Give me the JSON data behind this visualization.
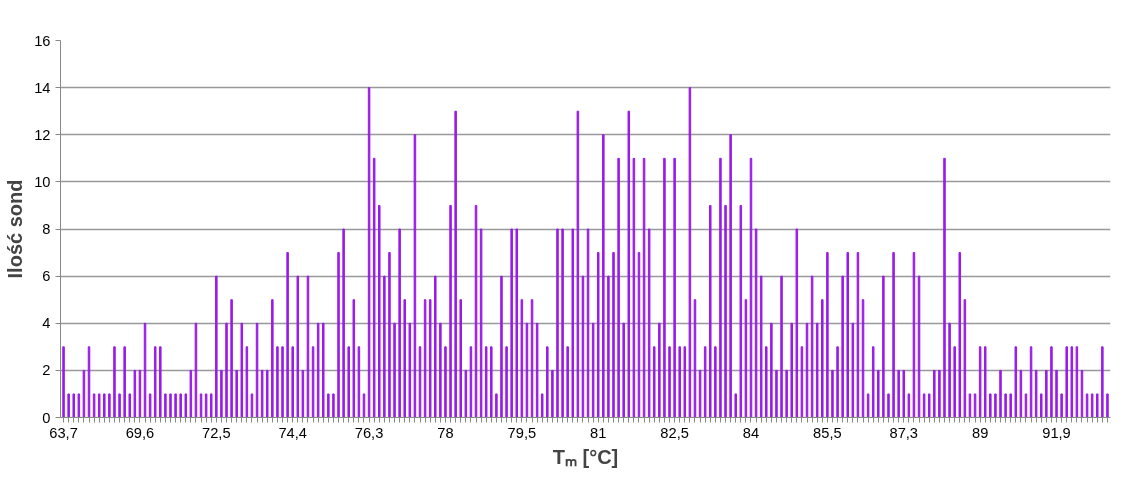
{
  "chart_data": {
    "type": "bar",
    "xlabel": "Tₘ [°C]",
    "ylabel": "Ilość sond",
    "categories": [
      "63,7",
      null,
      null,
      null,
      null,
      null,
      null,
      null,
      null,
      null,
      null,
      null,
      null,
      null,
      null,
      "69,6",
      null,
      null,
      null,
      null,
      null,
      null,
      null,
      null,
      null,
      null,
      null,
      null,
      null,
      null,
      "72,5",
      null,
      null,
      null,
      null,
      null,
      null,
      null,
      null,
      null,
      null,
      null,
      null,
      null,
      null,
      "74,4",
      null,
      null,
      null,
      null,
      null,
      null,
      null,
      null,
      null,
      null,
      null,
      null,
      null,
      null,
      "76,3",
      null,
      null,
      null,
      null,
      null,
      null,
      null,
      null,
      null,
      null,
      null,
      null,
      null,
      null,
      "78",
      null,
      null,
      null,
      null,
      null,
      null,
      null,
      null,
      null,
      null,
      null,
      null,
      null,
      null,
      "79,5",
      null,
      null,
      null,
      null,
      null,
      null,
      null,
      null,
      null,
      null,
      null,
      null,
      null,
      null,
      "81",
      null,
      null,
      null,
      null,
      null,
      null,
      null,
      null,
      null,
      null,
      null,
      null,
      null,
      null,
      "82,5",
      null,
      null,
      null,
      null,
      null,
      null,
      null,
      null,
      null,
      null,
      null,
      null,
      null,
      null,
      "84",
      null,
      null,
      null,
      null,
      null,
      null,
      null,
      null,
      null,
      null,
      null,
      null,
      null,
      null,
      "85,5",
      null,
      null,
      null,
      null,
      null,
      null,
      null,
      null,
      null,
      null,
      null,
      null,
      null,
      null,
      "87,3",
      null,
      null,
      null,
      null,
      null,
      null,
      null,
      null,
      null,
      null,
      null,
      null,
      null,
      null,
      "89",
      null,
      null,
      null,
      null,
      null,
      null,
      null,
      null,
      null,
      null,
      null,
      null,
      null,
      null,
      "91,9",
      null,
      null,
      null,
      null,
      null,
      null,
      null,
      null,
      null,
      null
    ],
    "values": [
      3,
      1,
      1,
      1,
      2,
      3,
      1,
      1,
      1,
      1,
      3,
      1,
      3,
      1,
      2,
      2,
      4,
      1,
      3,
      3,
      1,
      1,
      1,
      1,
      1,
      2,
      4,
      1,
      1,
      1,
      6,
      2,
      4,
      5,
      2,
      4,
      3,
      1,
      4,
      2,
      2,
      5,
      3,
      3,
      7,
      3,
      6,
      2,
      6,
      3,
      4,
      4,
      1,
      1,
      7,
      8,
      3,
      5,
      3,
      1,
      14,
      11,
      9,
      6,
      7,
      4,
      8,
      5,
      4,
      12,
      3,
      5,
      5,
      6,
      4,
      3,
      9,
      13,
      5,
      2,
      3,
      9,
      8,
      3,
      3,
      1,
      6,
      3,
      8,
      8,
      5,
      4,
      5,
      4,
      1,
      3,
      2,
      8,
      8,
      3,
      8,
      13,
      6,
      8,
      4,
      7,
      12,
      6,
      7,
      11,
      4,
      13,
      11,
      7,
      11,
      8,
      3,
      4,
      11,
      3,
      11,
      3,
      3,
      14,
      5,
      2,
      3,
      9,
      3,
      11,
      9,
      12,
      1,
      9,
      5,
      11,
      8,
      6,
      3,
      4,
      2,
      6,
      2,
      4,
      8,
      3,
      4,
      6,
      4,
      5,
      7,
      2,
      3,
      6,
      7,
      4,
      7,
      5,
      1,
      3,
      2,
      6,
      1,
      7,
      2,
      2,
      1,
      7,
      6,
      1,
      1,
      2,
      2,
      11,
      4,
      3,
      7,
      5,
      1,
      1,
      3,
      3,
      1,
      1,
      2,
      1,
      1,
      3,
      2,
      1,
      3,
      2,
      1,
      2,
      3,
      2,
      1,
      3,
      3,
      3,
      2,
      1,
      1,
      1,
      3,
      1
    ],
    "color": "#9a1be8",
    "ylim": [
      0,
      16
    ],
    "yticks": [
      0,
      2,
      4,
      6,
      8,
      10,
      12,
      14,
      16
    ],
    "grid": "y"
  }
}
